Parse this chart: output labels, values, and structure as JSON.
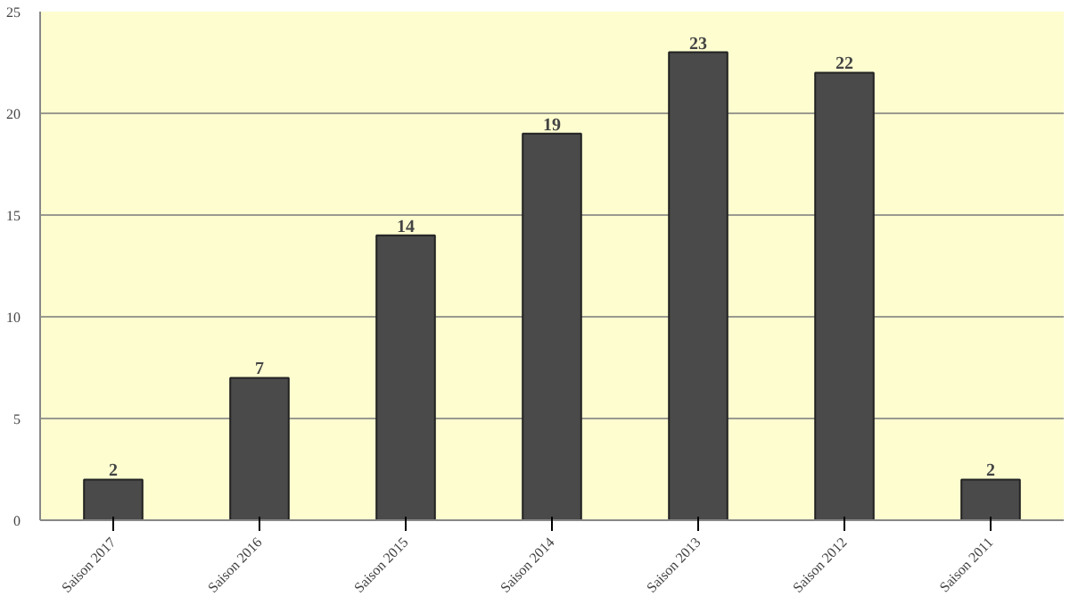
{
  "chart_data": {
    "type": "bar",
    "categories": [
      "Saison 2017",
      "Saison 2016",
      "Saison 2015",
      "Saison 2014",
      "Saison 2013",
      "Saison 2012",
      "Saison 2011"
    ],
    "values": [
      2,
      7,
      14,
      19,
      23,
      22,
      2
    ],
    "color": "#4a4a4a",
    "ylim": [
      0,
      25
    ],
    "yticks": [
      0,
      5,
      10,
      15,
      20,
      25
    ],
    "grid": "y",
    "data_labels": true
  }
}
